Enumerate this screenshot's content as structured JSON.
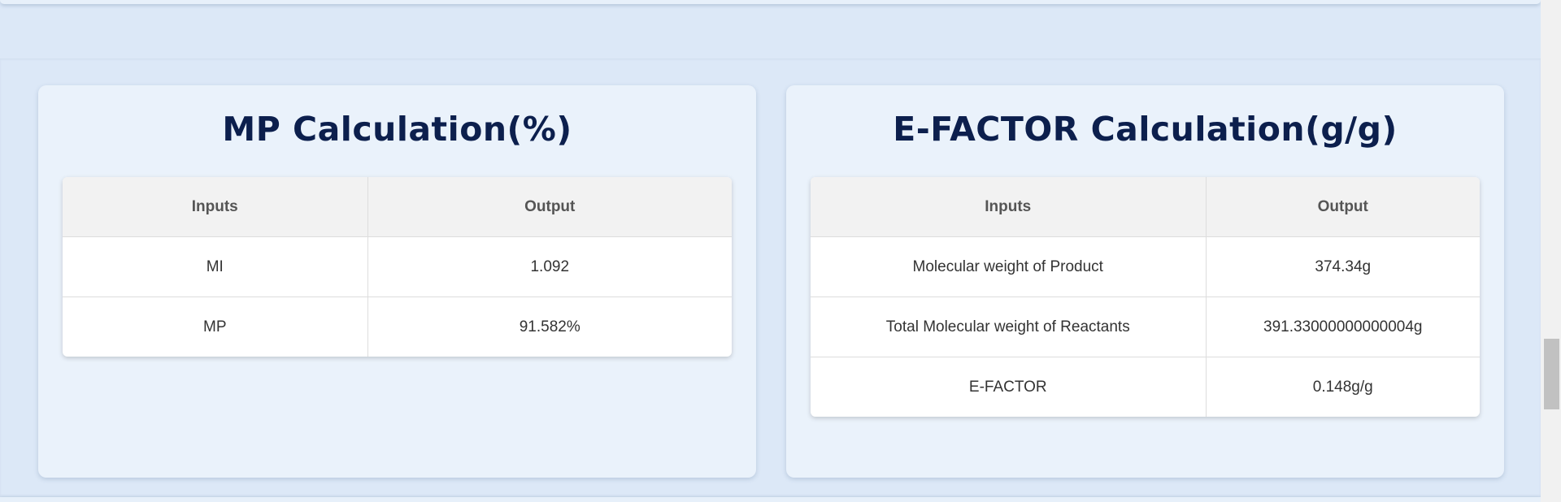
{
  "mp_card": {
    "title": "MP Calculation(%)",
    "headers": {
      "inputs": "Inputs",
      "output": "Output"
    },
    "rows": [
      {
        "input": "MI",
        "output": "1.092"
      },
      {
        "input": "MP",
        "output": "91.582%"
      }
    ]
  },
  "efactor_card": {
    "title": "E-FACTOR Calculation(g/g)",
    "headers": {
      "inputs": "Inputs",
      "output": "Output"
    },
    "rows": [
      {
        "input": "Molecular weight of Product",
        "output": "374.34g"
      },
      {
        "input": "Total Molecular weight of Reactants",
        "output": "391.33000000000004g"
      },
      {
        "input": "E-FACTOR",
        "output": "0.148g/g"
      }
    ]
  }
}
